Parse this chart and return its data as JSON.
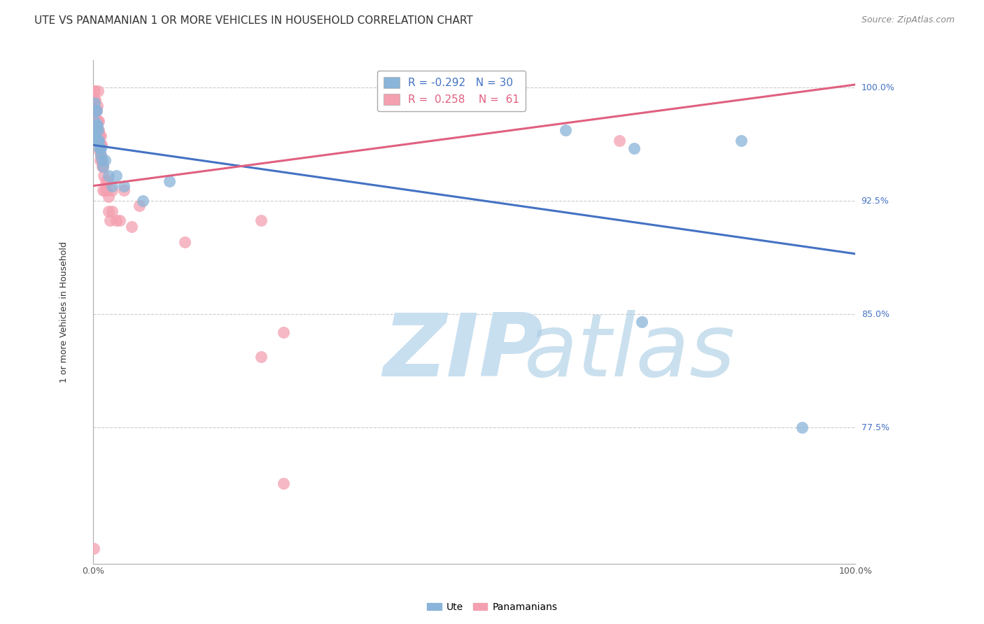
{
  "title": "UTE VS PANAMANIAN 1 OR MORE VEHICLES IN HOUSEHOLD CORRELATION CHART",
  "source": "Source: ZipAtlas.com",
  "ylabel": "1 or more Vehicles in Household",
  "ytick_labels": [
    "100.0%",
    "92.5%",
    "85.0%",
    "77.5%"
  ],
  "ytick_values": [
    1.0,
    0.925,
    0.85,
    0.775
  ],
  "xmin": 0.0,
  "xmax": 1.0,
  "ymin": 0.685,
  "ymax": 1.018,
  "background_color": "#ffffff",
  "legend_R_ute": "-0.292",
  "legend_N_ute": "30",
  "legend_R_pan": "0.258",
  "legend_N_pan": "61",
  "ute_color": "#8ab4d9",
  "pan_color": "#f4a0b0",
  "ute_line_color": "#4472c4",
  "pan_line_color": "#e06080",
  "ute_scatter_x": [
    0.001,
    0.002,
    0.002,
    0.003,
    0.003,
    0.004,
    0.004,
    0.005,
    0.005,
    0.006,
    0.006,
    0.007,
    0.008,
    0.009,
    0.01,
    0.01,
    0.012,
    0.013,
    0.015,
    0.02,
    0.025,
    0.03,
    0.04,
    0.065,
    0.1,
    0.62,
    0.71,
    0.72,
    0.85,
    0.93
  ],
  "ute_scatter_y": [
    0.972,
    0.978,
    0.99,
    0.97,
    0.985,
    0.975,
    0.985,
    0.965,
    0.975,
    0.965,
    0.972,
    0.965,
    0.96,
    0.96,
    0.955,
    0.96,
    0.952,
    0.948,
    0.952,
    0.942,
    0.935,
    0.942,
    0.935,
    0.925,
    0.938,
    0.972,
    0.96,
    0.845,
    0.965,
    0.775
  ],
  "pan_scatter_x": [
    0.001,
    0.001,
    0.001,
    0.002,
    0.002,
    0.002,
    0.002,
    0.002,
    0.003,
    0.003,
    0.003,
    0.003,
    0.003,
    0.004,
    0.004,
    0.004,
    0.005,
    0.005,
    0.005,
    0.005,
    0.006,
    0.006,
    0.006,
    0.006,
    0.007,
    0.007,
    0.007,
    0.008,
    0.008,
    0.008,
    0.009,
    0.009,
    0.01,
    0.01,
    0.01,
    0.011,
    0.011,
    0.012,
    0.013,
    0.013,
    0.014,
    0.015,
    0.016,
    0.017,
    0.018,
    0.02,
    0.02,
    0.022,
    0.025,
    0.025,
    0.03,
    0.035,
    0.04,
    0.05,
    0.06,
    0.12,
    0.22,
    0.22,
    0.25,
    0.25,
    0.69
  ],
  "pan_scatter_y": [
    0.695,
    0.975,
    0.998,
    0.992,
    0.982,
    0.972,
    0.985,
    0.998,
    0.992,
    0.985,
    0.975,
    0.965,
    0.978,
    0.985,
    0.972,
    0.965,
    0.988,
    0.978,
    0.972,
    0.965,
    0.965,
    0.972,
    0.978,
    0.998,
    0.965,
    0.972,
    0.978,
    0.968,
    0.958,
    0.968,
    0.963,
    0.952,
    0.962,
    0.968,
    0.955,
    0.952,
    0.962,
    0.948,
    0.948,
    0.932,
    0.942,
    0.932,
    0.938,
    0.932,
    0.938,
    0.918,
    0.928,
    0.912,
    0.932,
    0.918,
    0.912,
    0.912,
    0.932,
    0.908,
    0.922,
    0.898,
    0.822,
    0.912,
    0.838,
    0.738,
    0.965
  ],
  "ute_trend_y_start": 0.962,
  "ute_trend_y_end": 0.89,
  "pan_trend_y_start": 0.935,
  "pan_trend_y_end": 1.002,
  "grid_color": "#cccccc",
  "title_fontsize": 11,
  "axis_label_fontsize": 9,
  "tick_label_fontsize": 9,
  "legend_fontsize": 11,
  "source_fontsize": 9
}
